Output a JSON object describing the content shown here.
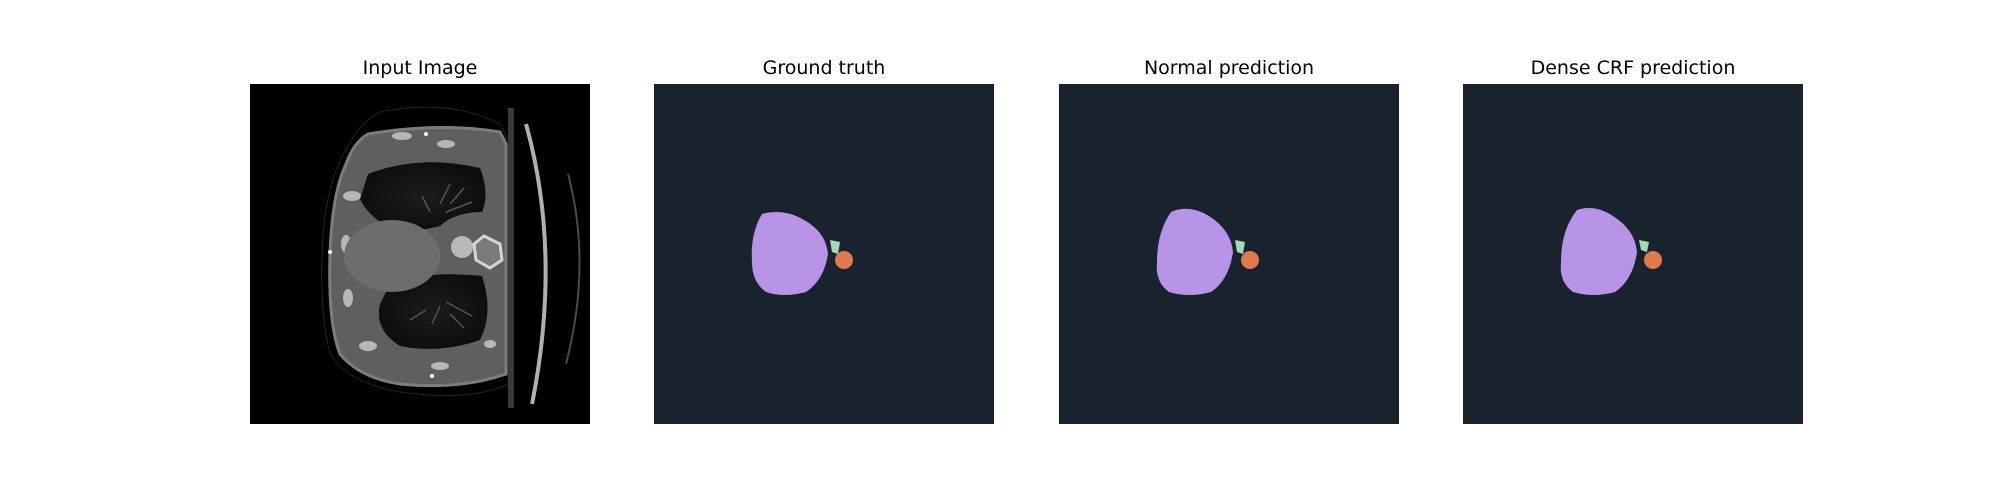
{
  "panels": [
    {
      "title": "Input Image"
    },
    {
      "title": "Ground truth"
    },
    {
      "title": "Normal prediction"
    },
    {
      "title": "Dense CRF prediction"
    }
  ],
  "colors": {
    "figure_background": "#ffffff",
    "ct_background": "#000000",
    "mask_background": "#19232e",
    "label_heart": "#b794e8",
    "label_aorta": "#e17a4b",
    "label_vessel": "#a6d8b6"
  }
}
